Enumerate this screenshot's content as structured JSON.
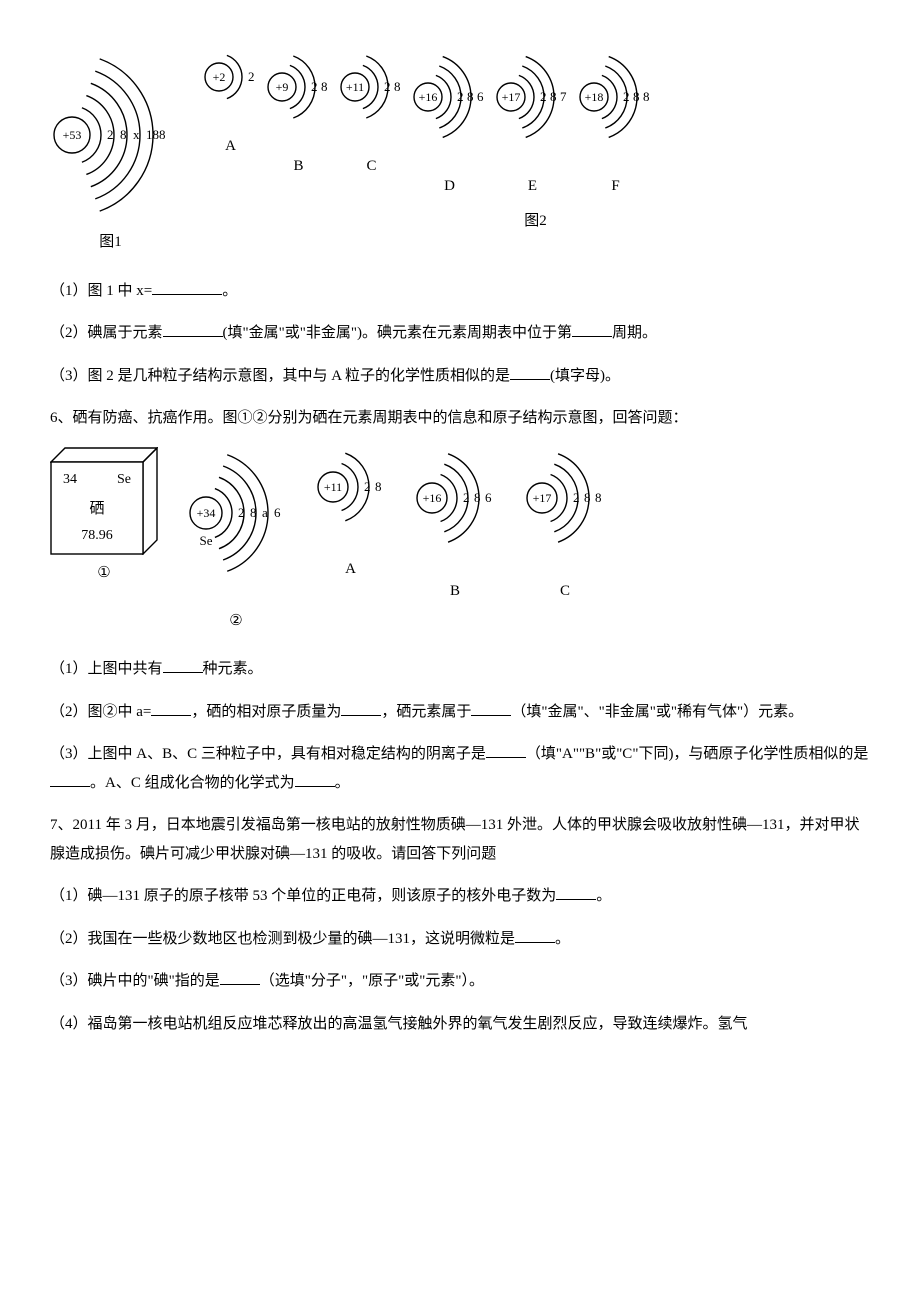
{
  "fig1": {
    "atom": {
      "proton": "+53",
      "shells": [
        "2",
        "8",
        "x",
        "18",
        "8"
      ]
    },
    "caption": "图1"
  },
  "fig2": {
    "atoms": [
      {
        "label": "A",
        "proton": "+2",
        "shells": [
          "2"
        ]
      },
      {
        "label": "B",
        "proton": "+9",
        "shells": [
          "2",
          "8"
        ]
      },
      {
        "label": "C",
        "proton": "+11",
        "shells": [
          "2",
          "8"
        ]
      },
      {
        "label": "D",
        "proton": "+16",
        "shells": [
          "2",
          "8",
          "6"
        ]
      },
      {
        "label": "E",
        "proton": "+17",
        "shells": [
          "2",
          "8",
          "7"
        ]
      },
      {
        "label": "F",
        "proton": "+18",
        "shells": [
          "2",
          "8",
          "8"
        ]
      }
    ],
    "caption": "图2"
  },
  "q5": {
    "p1_a": "（1）图 1 中 x=",
    "p1_b": "。",
    "p2_a": "（2）碘属于元素",
    "p2_b": "(填\"金属\"或\"非金属\")。碘元素在元素周期表中位于第",
    "p2_c": "周期。",
    "p3_a": "（3）图 2 是几种粒子结构示意图，其中与 A 粒子的化学性质相似的是",
    "p3_b": "(填字母)。"
  },
  "q6": {
    "intro": "6、硒有防癌、抗癌作用。图①②分别为硒在元素周期表中的信息和原子结构示意图，回答问题：",
    "cube": {
      "num": "34",
      "sym": "Se",
      "name": "硒",
      "mass": "78.96",
      "label": "①"
    },
    "se_atom": {
      "proton": "+34",
      "below": "Se",
      "shells": [
        "2",
        "8",
        "a",
        "6"
      ],
      "label": "②"
    },
    "atoms": [
      {
        "label": "A",
        "proton": "+11",
        "shells": [
          "2",
          "8"
        ]
      },
      {
        "label": "B",
        "proton": "+16",
        "shells": [
          "2",
          "8",
          "6"
        ]
      },
      {
        "label": "C",
        "proton": "+17",
        "shells": [
          "2",
          "8",
          "8"
        ]
      }
    ],
    "p1_a": "（1）上图中共有",
    "p1_b": "种元素。",
    "p2_a": "（2）图②中 a=",
    "p2_b": "，硒的相对原子质量为",
    "p2_c": "，硒元素属于",
    "p2_d": "（填\"金属\"、\"非金属\"或\"稀有气体\"）元素。",
    "p3_a": "（3）上图中 A、B、C 三种粒子中，具有相对稳定结构的阴离子是",
    "p3_b": "（填\"A\"\"B\"或\"C\"下同)，与硒原子化学性质相似的是",
    "p3_c": "。A、C 组成化合物的化学式为",
    "p3_d": "。"
  },
  "q7": {
    "intro": "7、2011 年 3 月，日本地震引发福岛第一核电站的放射性物质碘—131 外泄。人体的甲状腺会吸收放射性碘—131，并对甲状腺造成损伤。碘片可减少甲状腺对碘—131 的吸收。请回答下列问题",
    "p1_a": "（1）碘—131 原子的原子核带 53 个单位的正电荷，则该原子的核外电子数为",
    "p1_b": "。",
    "p2_a": "（2）我国在一些极少数地区也检测到极少量的碘—131，这说明微粒是",
    "p2_b": "。",
    "p3_a": "（3）碘片中的\"碘\"指的是",
    "p3_b": "（选填\"分子\"，\"原子\"或\"元素\"）。",
    "p4": "（4）福岛第一核电站机组反应堆芯释放出的高温氢气接触外界的氧气发生剧烈反应，导致连续爆炸。氢气"
  },
  "style": {
    "stroke": "#000000",
    "stroke_width": 1.4
  }
}
